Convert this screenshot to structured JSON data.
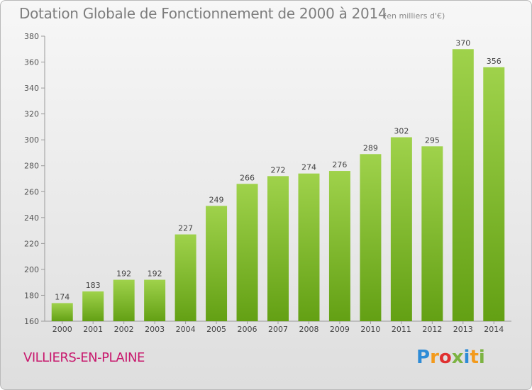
{
  "header": {
    "title": "Dotation Globale de Fonctionnement de 2000 à 2014",
    "unit": "(en milliers d'€)"
  },
  "footer": {
    "commune": "VILLIERS-EN-PLAINE",
    "logo_letters": [
      "P",
      "r",
      "o",
      "x",
      "i",
      "t",
      "i"
    ],
    "logo_colors": [
      "#2e8bd6",
      "#f39a1c",
      "#e03131",
      "#7cb342",
      "#2e8bd6",
      "#f39a1c",
      "#7cb342"
    ]
  },
  "colors": {
    "bar_light": "#9fd24b",
    "bar_dark": "#63a014",
    "text_accent": "#c8186d"
  },
  "chart_data": {
    "type": "bar",
    "categories": [
      "2000",
      "2001",
      "2002",
      "2003",
      "2004",
      "2005",
      "2006",
      "2007",
      "2008",
      "2009",
      "2010",
      "2011",
      "2012",
      "2013",
      "2014"
    ],
    "values": [
      174,
      183,
      192,
      192,
      227,
      249,
      266,
      272,
      274,
      276,
      289,
      302,
      295,
      370,
      356
    ],
    "ylim": [
      160,
      380
    ],
    "yticks": [
      160,
      180,
      200,
      220,
      240,
      260,
      280,
      300,
      320,
      340,
      360,
      380
    ],
    "grid": false,
    "legend": "none"
  }
}
